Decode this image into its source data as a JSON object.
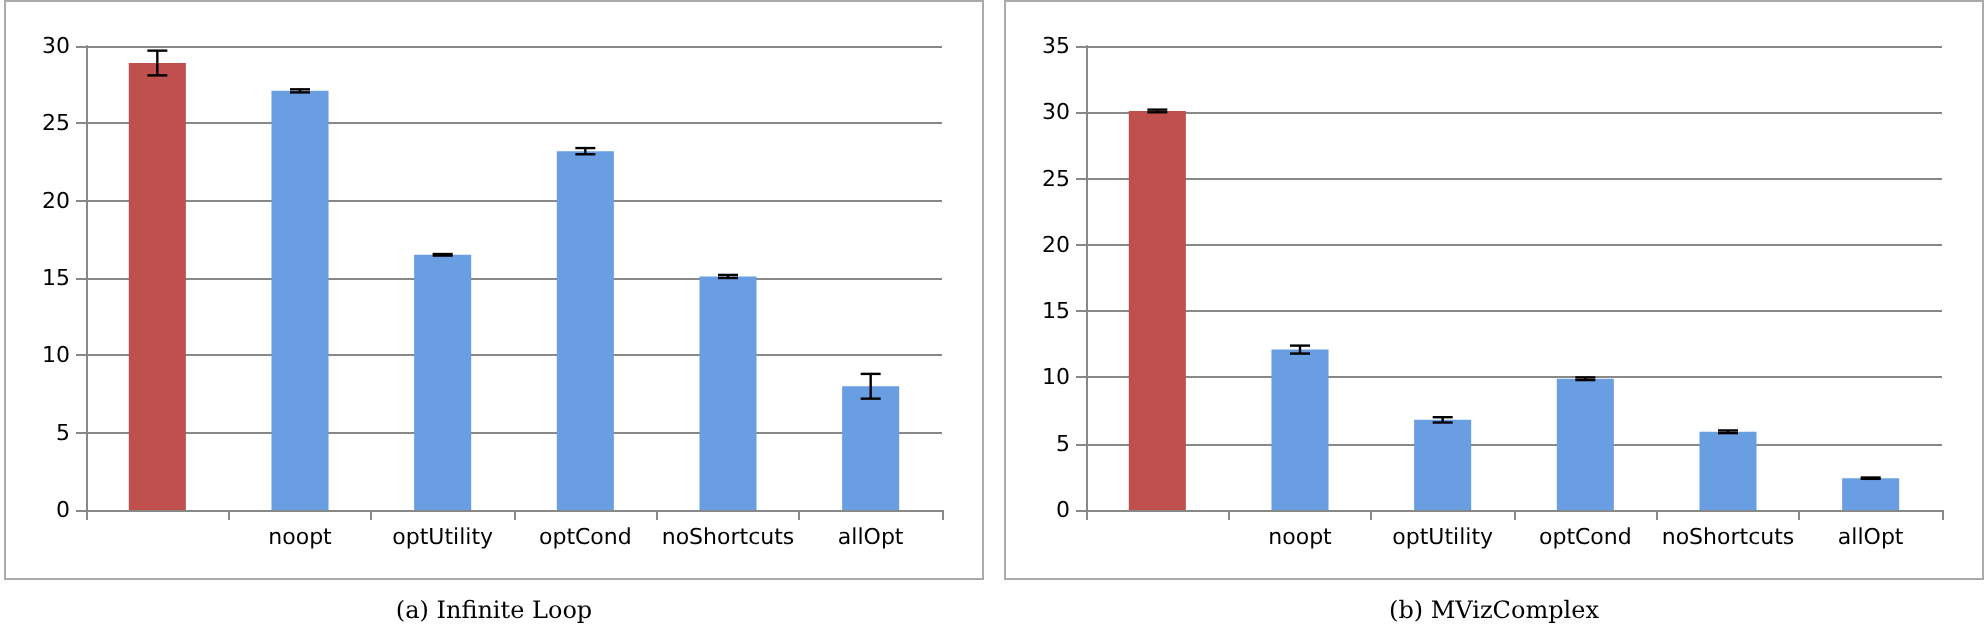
{
  "chart_data": [
    {
      "type": "bar",
      "title": "(a) Infinite Loop",
      "categories": [
        null,
        "noopt",
        "optUtility",
        "optCond",
        "noShortcuts",
        "allOpt"
      ],
      "values": [
        28.9,
        27.1,
        16.5,
        23.2,
        15.1,
        8.0
      ],
      "errors": [
        0.8,
        0.1,
        0.05,
        0.2,
        0.1,
        0.8
      ],
      "colors": [
        "#c0504d",
        "#6a9ee3",
        "#6a9ee3",
        "#6a9ee3",
        "#6a9ee3",
        "#6a9ee3"
      ],
      "ylim": [
        0,
        30
      ],
      "yticks": [
        0,
        5,
        10,
        15,
        20,
        25,
        30
      ],
      "grid": "y"
    },
    {
      "type": "bar",
      "title": "(b) MVizComplex",
      "categories": [
        null,
        "noopt",
        "optUtility",
        "optCond",
        "noShortcuts",
        "allOpt"
      ],
      "values": [
        30.1,
        12.1,
        6.8,
        9.9,
        5.9,
        2.4
      ],
      "errors": [
        0.1,
        0.3,
        0.2,
        0.1,
        0.1,
        0.05
      ],
      "colors": [
        "#c0504d",
        "#6a9ee3",
        "#6a9ee3",
        "#6a9ee3",
        "#6a9ee3",
        "#6a9ee3"
      ],
      "ylim": [
        0,
        35
      ],
      "yticks": [
        0,
        5,
        10,
        15,
        20,
        25,
        30,
        35
      ],
      "grid": "y"
    }
  ]
}
